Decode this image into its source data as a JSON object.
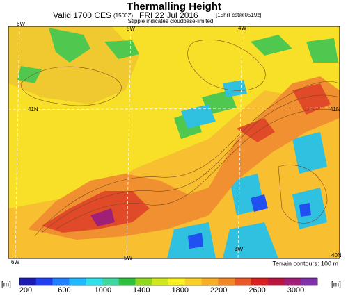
{
  "header": {
    "title": "Thermalling Height",
    "valid": "Valid 1700 CES",
    "utc": "(1500Z)",
    "date": "FRI 22 Jul 2016",
    "forecast": "[15hrFcst@0519z]",
    "note": "Stipple indicates cloudbase-limited"
  },
  "map": {
    "grid_labels": {
      "top_left": "6W",
      "top_mid": "5W",
      "top_right": "4W",
      "left_lat": "41N",
      "right_lat": "41N",
      "right_low_lat": "40N",
      "bottom_left": "6W",
      "bottom_mid": "5W",
      "inner_4w": "4W"
    },
    "terrain_note": "Terrain contours: 100 m"
  },
  "colorbar": {
    "unit_left": "[m]",
    "unit_right": "[m]",
    "range": [
      200,
      3000
    ],
    "ticks": [
      200,
      600,
      1000,
      1400,
      1800,
      2200,
      2600,
      3000
    ],
    "colors": [
      "#1c1cb4",
      "#2040f0",
      "#2080ff",
      "#20b8ff",
      "#30e0e8",
      "#40d8a0",
      "#30c040",
      "#90d820",
      "#d0e820",
      "#f8f020",
      "#f8d028",
      "#f8b028",
      "#f08828",
      "#e85828",
      "#d82020",
      "#b81840",
      "#a02078",
      "#8030a8"
    ]
  }
}
